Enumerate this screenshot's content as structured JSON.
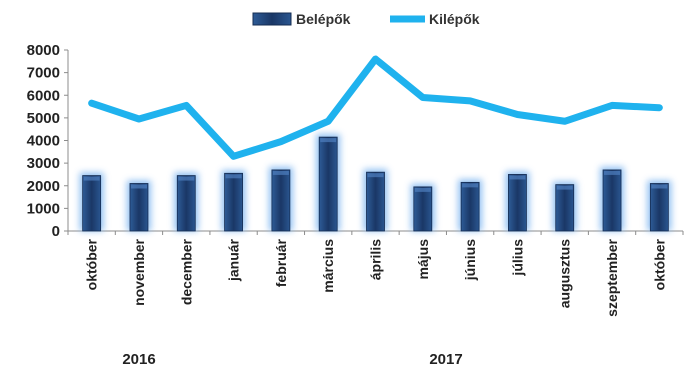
{
  "chart_data": {
    "type": "bar",
    "categories": [
      "október",
      "november",
      "december",
      "január",
      "február",
      "március",
      "április",
      "május",
      "június",
      "július",
      "augusztus",
      "szeptember",
      "október"
    ],
    "series": [
      {
        "name": "Belépők",
        "type": "bar",
        "color": "#1f3f6e",
        "values": [
          2450,
          2100,
          2450,
          2550,
          2700,
          4150,
          2600,
          1950,
          2150,
          2500,
          2050,
          2700,
          2100
        ]
      },
      {
        "name": "Kilépők",
        "type": "line",
        "color": "#1fb2ee",
        "values": [
          5650,
          4950,
          5550,
          3300,
          3950,
          4850,
          7600,
          5900,
          5750,
          5150,
          4850,
          5550,
          5450
        ]
      }
    ],
    "y_ticks": [
      "0",
      "1000",
      "2000",
      "3000",
      "4000",
      "5000",
      "6000",
      "7000",
      "8000"
    ],
    "ylim": [
      0,
      8000
    ],
    "year_labels": [
      "2016",
      "2017"
    ],
    "legend_position": "top-center",
    "grid": false
  }
}
